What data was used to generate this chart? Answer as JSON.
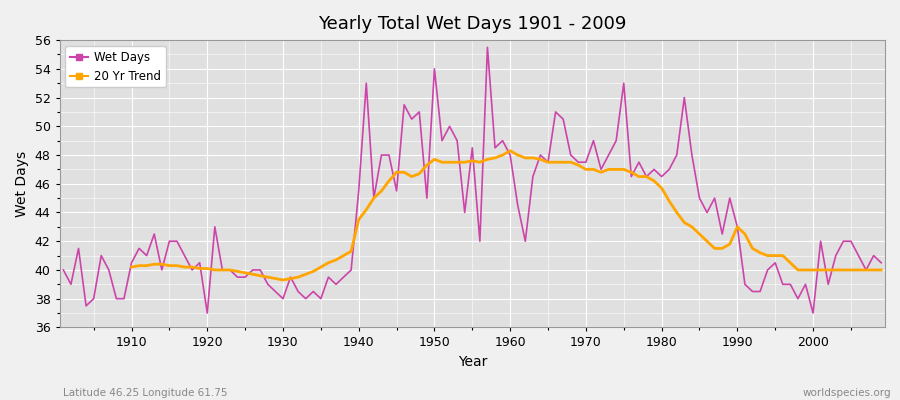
{
  "title": "Yearly Total Wet Days 1901 - 2009",
  "xlabel": "Year",
  "ylabel": "Wet Days",
  "footnote_left": "Latitude 46.25 Longitude 61.75",
  "footnote_right": "worldspecies.org",
  "ylim": [
    36,
    56
  ],
  "yticks": [
    36,
    38,
    40,
    42,
    44,
    46,
    48,
    50,
    52,
    54,
    56
  ],
  "line_color": "#CC44AA",
  "trend_color": "#FFA500",
  "fig_bg_color": "#F0F0F0",
  "plot_bg_color": "#E0E0E0",
  "grid_color": "#FFFFFF",
  "years": [
    1901,
    1902,
    1903,
    1904,
    1905,
    1906,
    1907,
    1908,
    1909,
    1910,
    1911,
    1912,
    1913,
    1914,
    1915,
    1916,
    1917,
    1918,
    1919,
    1920,
    1921,
    1922,
    1923,
    1924,
    1925,
    1926,
    1927,
    1928,
    1929,
    1930,
    1931,
    1932,
    1933,
    1934,
    1935,
    1936,
    1937,
    1938,
    1939,
    1940,
    1941,
    1942,
    1943,
    1944,
    1945,
    1946,
    1947,
    1948,
    1949,
    1950,
    1951,
    1952,
    1953,
    1954,
    1955,
    1956,
    1957,
    1958,
    1959,
    1960,
    1961,
    1962,
    1963,
    1964,
    1965,
    1966,
    1967,
    1968,
    1969,
    1970,
    1971,
    1972,
    1973,
    1974,
    1975,
    1976,
    1977,
    1978,
    1979,
    1980,
    1981,
    1982,
    1983,
    1984,
    1985,
    1986,
    1987,
    1988,
    1989,
    1990,
    1991,
    1992,
    1993,
    1994,
    1995,
    1996,
    1997,
    1998,
    1999,
    2000,
    2001,
    2002,
    2003,
    2004,
    2005,
    2006,
    2007,
    2008,
    2009
  ],
  "wet_days": [
    40,
    39,
    41.5,
    37.5,
    38,
    41,
    40,
    38,
    38,
    40.5,
    41.5,
    41,
    42.5,
    40,
    42,
    42,
    41,
    40,
    40.5,
    37,
    43,
    40,
    40,
    39.5,
    39.5,
    40,
    40,
    39,
    38.5,
    38,
    39.5,
    38.5,
    38,
    38.5,
    38,
    39.5,
    39,
    39.5,
    40,
    45.5,
    53,
    45,
    48,
    48,
    45.5,
    51.5,
    50.5,
    51,
    45,
    54,
    49,
    50,
    49,
    44,
    48.5,
    42,
    55.5,
    48.5,
    49,
    48,
    44.5,
    42,
    46.5,
    48,
    47.5,
    51,
    50.5,
    48,
    47.5,
    47.5,
    49,
    47,
    48,
    49,
    53,
    46.5,
    47.5,
    46.5,
    47,
    46.5,
    47,
    48,
    52,
    48,
    45,
    44,
    45,
    42.5,
    45,
    43,
    39,
    38.5,
    38.5,
    40,
    40.5,
    39,
    39,
    38,
    39,
    37,
    42,
    39,
    41,
    42,
    42,
    41,
    40,
    41,
    40.5
  ],
  "trend": [
    null,
    null,
    null,
    null,
    null,
    null,
    null,
    null,
    null,
    40.2,
    40.3,
    40.3,
    40.4,
    40.4,
    40.3,
    40.3,
    40.2,
    40.2,
    40.1,
    40.1,
    40.0,
    40.0,
    40.0,
    39.9,
    39.8,
    39.7,
    39.6,
    39.5,
    39.4,
    39.3,
    39.4,
    39.5,
    39.7,
    39.9,
    40.2,
    40.5,
    40.7,
    41.0,
    41.3,
    43.5,
    44.2,
    45.0,
    45.5,
    46.2,
    46.8,
    46.8,
    46.5,
    46.7,
    47.3,
    47.7,
    47.5,
    47.5,
    47.5,
    47.5,
    47.6,
    47.5,
    47.7,
    47.8,
    48.0,
    48.3,
    48.0,
    47.8,
    47.8,
    47.7,
    47.5,
    47.5,
    47.5,
    47.5,
    47.3,
    47.0,
    47.0,
    46.8,
    47.0,
    47.0,
    47.0,
    46.8,
    46.5,
    46.5,
    46.2,
    45.7,
    44.8,
    44.0,
    43.3,
    43.0,
    42.5,
    42.0,
    41.5,
    41.5,
    41.8,
    43.0,
    42.5,
    41.5,
    41.2,
    41.0,
    41.0,
    41.0,
    40.5,
    40.0,
    40.0,
    40.0,
    40.0,
    40.0,
    40.0,
    40.0,
    40.0,
    40.0,
    40.0,
    40.0,
    40.0
  ]
}
